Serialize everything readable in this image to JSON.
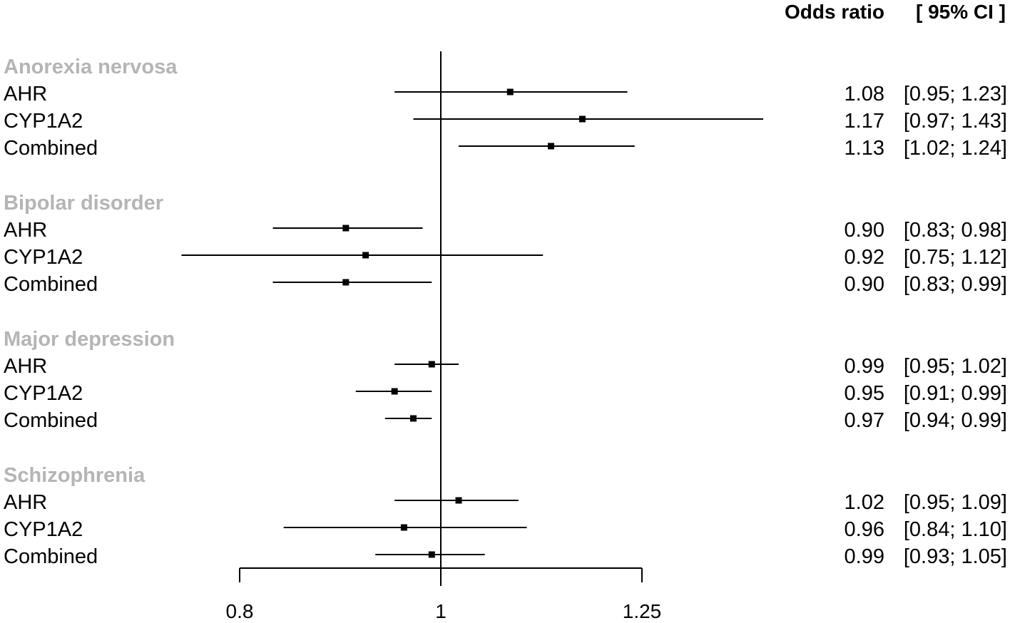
{
  "colors": {
    "group_label": "#b5b5b5",
    "ink": "#000000",
    "background": "#ffffff"
  },
  "header": {
    "or_label": "Odds ratio",
    "ci_label": "[ 95% CI ]"
  },
  "chart_data": {
    "type": "forest",
    "x_scale": "log",
    "reference_line": 1,
    "xticks": [
      0.8,
      1,
      1.25
    ],
    "xtick_labels": [
      "0.8",
      "1",
      "1.25"
    ],
    "groups": [
      {
        "name": "Anorexia nervosa",
        "rows": [
          {
            "label": "AHR",
            "or": 1.08,
            "lower": 0.95,
            "upper": 1.23,
            "or_text": "1.08",
            "ci_text": "[0.95; 1.23]"
          },
          {
            "label": "CYP1A2",
            "or": 1.17,
            "lower": 0.97,
            "upper": 1.43,
            "or_text": "1.17",
            "ci_text": "[0.97; 1.43]"
          },
          {
            "label": "Combined",
            "or": 1.13,
            "lower": 1.02,
            "upper": 1.24,
            "or_text": "1.13",
            "ci_text": "[1.02; 1.24]"
          }
        ]
      },
      {
        "name": "Bipolar disorder",
        "rows": [
          {
            "label": "AHR",
            "or": 0.9,
            "lower": 0.83,
            "upper": 0.98,
            "or_text": "0.90",
            "ci_text": "[0.83; 0.98]"
          },
          {
            "label": "CYP1A2",
            "or": 0.92,
            "lower": 0.75,
            "upper": 1.12,
            "or_text": "0.92",
            "ci_text": "[0.75; 1.12]"
          },
          {
            "label": "Combined",
            "or": 0.9,
            "lower": 0.83,
            "upper": 0.99,
            "or_text": "0.90",
            "ci_text": "[0.83; 0.99]"
          }
        ]
      },
      {
        "name": "Major depression",
        "rows": [
          {
            "label": "AHR",
            "or": 0.99,
            "lower": 0.95,
            "upper": 1.02,
            "or_text": "0.99",
            "ci_text": "[0.95; 1.02]"
          },
          {
            "label": "CYP1A2",
            "or": 0.95,
            "lower": 0.91,
            "upper": 0.99,
            "or_text": "0.95",
            "ci_text": "[0.91; 0.99]"
          },
          {
            "label": "Combined",
            "or": 0.97,
            "lower": 0.94,
            "upper": 0.99,
            "or_text": "0.97",
            "ci_text": "[0.94; 0.99]"
          }
        ]
      },
      {
        "name": "Schizophrenia",
        "rows": [
          {
            "label": "AHR",
            "or": 1.02,
            "lower": 0.95,
            "upper": 1.09,
            "or_text": "1.02",
            "ci_text": "[0.95; 1.09]"
          },
          {
            "label": "CYP1A2",
            "or": 0.96,
            "lower": 0.84,
            "upper": 1.1,
            "or_text": "0.96",
            "ci_text": "[0.84; 1.10]"
          },
          {
            "label": "Combined",
            "or": 0.99,
            "lower": 0.93,
            "upper": 1.05,
            "or_text": "0.99",
            "ci_text": "[0.93; 1.05]"
          }
        ]
      }
    ]
  }
}
